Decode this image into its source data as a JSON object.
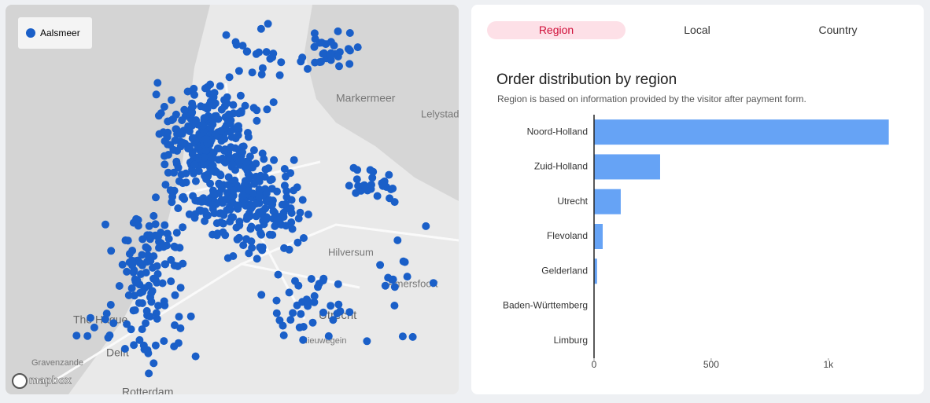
{
  "map": {
    "legend": "Aalsmeer",
    "places": [
      "Markermeer",
      "Lelystad",
      "Hilversum",
      "Amersfoort",
      "The Hague",
      "Utrecht",
      "Delft",
      "Nieuwegein",
      "Gravenzande",
      "Rotterdam"
    ],
    "attribution": "mapbox"
  },
  "tabs": [
    "Region",
    "Local",
    "Country"
  ],
  "chart_data": {
    "type": "bar",
    "orientation": "horizontal",
    "title": "Order distribution by region",
    "subtitle": "Region is based on information provided by the visitor after payment form.",
    "categories": [
      "Noord-Holland",
      "Zuid-Holland",
      "Utrecht",
      "Flevoland",
      "Gelderland",
      "Baden-Württemberg",
      "Limburg"
    ],
    "values": [
      1258,
      282,
      114,
      37,
      13,
      1,
      1
    ],
    "color": "#66a3f5",
    "xlim": [
      0,
      1360
    ],
    "xticks": [
      0,
      500,
      {
        "value": 1000,
        "label": "1k"
      }
    ]
  }
}
